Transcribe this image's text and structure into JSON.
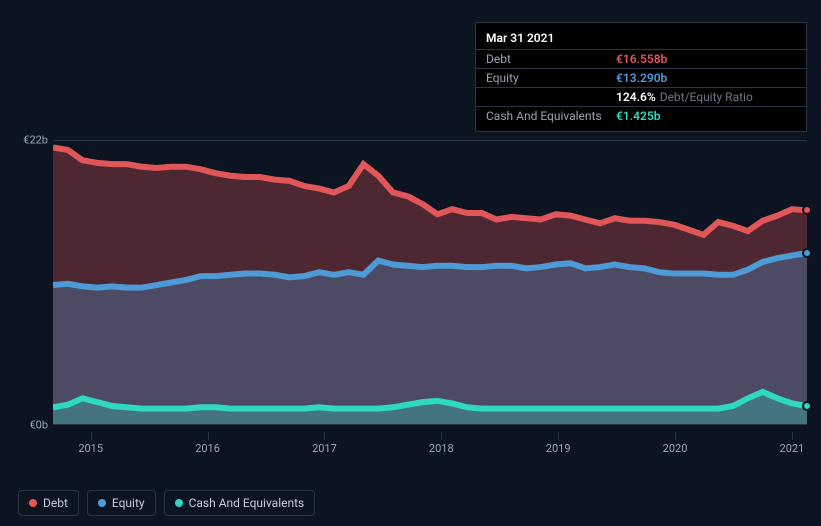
{
  "tooltip": {
    "date": "Mar 31 2021",
    "rows": [
      {
        "label": "Debt",
        "value": "€16.558b",
        "color": "#e15759"
      },
      {
        "label": "Equity",
        "value": "€13.290b",
        "color": "#4e9ad6"
      },
      {
        "label": "",
        "value": "124.6%",
        "extra": "Debt/Equity Ratio",
        "color": "#ffffff"
      },
      {
        "label": "Cash And Equivalents",
        "value": "€1.425b",
        "color": "#2fd8c0"
      }
    ]
  },
  "chart": {
    "type": "area",
    "background_color": "#0d1421",
    "grid_color": "#2a3442",
    "y_axis": {
      "max_label": "€22b",
      "min_label": "€0b",
      "ylim": [
        0,
        22
      ],
      "label_fontsize": 11,
      "label_color": "#9aa4b2"
    },
    "x_axis": {
      "labels": [
        "2015",
        "2016",
        "2017",
        "2018",
        "2019",
        "2020",
        "2021"
      ],
      "positions_pct": [
        5,
        20.5,
        36,
        51.5,
        67,
        82.5,
        98
      ],
      "label_fontsize": 11,
      "label_color": "#9aa4b2"
    },
    "series": [
      {
        "name": "Debt",
        "stroke": "#e15759",
        "fill": "#e15759",
        "fill_opacity": 0.3,
        "line_width": 2,
        "values": [
          21.5,
          21.3,
          20.5,
          20.3,
          20.2,
          20.2,
          20.0,
          19.9,
          20.0,
          20.0,
          19.8,
          19.5,
          19.3,
          19.2,
          19.2,
          19.0,
          18.9,
          18.5,
          18.3,
          18.0,
          18.5,
          20.2,
          19.3,
          18.0,
          17.7,
          17.1,
          16.3,
          16.7,
          16.4,
          16.4,
          15.9,
          16.1,
          16.0,
          15.9,
          16.3,
          16.2,
          15.9,
          15.6,
          16.0,
          15.8,
          15.8,
          15.7,
          15.5,
          15.1,
          14.7,
          15.7,
          15.4,
          15.0,
          15.8,
          16.2,
          16.7,
          16.6
        ]
      },
      {
        "name": "Equity",
        "stroke": "#4e9ad6",
        "fill": "#4e9ad6",
        "fill_opacity": 0.3,
        "line_width": 2,
        "values": [
          10.8,
          10.9,
          10.7,
          10.6,
          10.7,
          10.6,
          10.6,
          10.8,
          11.0,
          11.2,
          11.5,
          11.5,
          11.6,
          11.7,
          11.7,
          11.6,
          11.4,
          11.5,
          11.8,
          11.6,
          11.8,
          11.6,
          12.7,
          12.4,
          12.3,
          12.2,
          12.3,
          12.3,
          12.2,
          12.2,
          12.3,
          12.3,
          12.1,
          12.2,
          12.4,
          12.5,
          12.1,
          12.2,
          12.4,
          12.2,
          12.1,
          11.8,
          11.7,
          11.7,
          11.7,
          11.6,
          11.6,
          12.0,
          12.6,
          12.9,
          13.1,
          13.3
        ]
      },
      {
        "name": "Cash And Equivalents",
        "stroke": "#2fd8c0",
        "fill": "#2fd8c0",
        "fill_opacity": 0.3,
        "line_width": 2,
        "values": [
          1.3,
          1.5,
          2.0,
          1.7,
          1.4,
          1.3,
          1.2,
          1.2,
          1.2,
          1.2,
          1.3,
          1.3,
          1.2,
          1.2,
          1.2,
          1.2,
          1.2,
          1.2,
          1.3,
          1.2,
          1.2,
          1.2,
          1.2,
          1.3,
          1.5,
          1.7,
          1.8,
          1.6,
          1.3,
          1.2,
          1.2,
          1.2,
          1.2,
          1.2,
          1.2,
          1.2,
          1.2,
          1.2,
          1.2,
          1.2,
          1.2,
          1.2,
          1.2,
          1.2,
          1.2,
          1.2,
          1.4,
          2.0,
          2.5,
          2.0,
          1.6,
          1.4
        ]
      }
    ],
    "legend": [
      {
        "label": "Debt",
        "color": "#e15759"
      },
      {
        "label": "Equity",
        "color": "#4e9ad6"
      },
      {
        "label": "Cash And Equivalents",
        "color": "#2fd8c0"
      }
    ]
  }
}
